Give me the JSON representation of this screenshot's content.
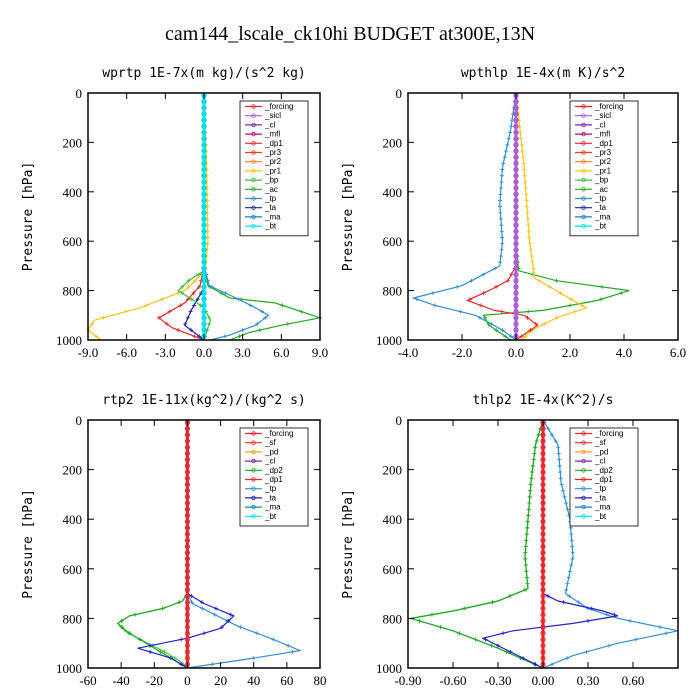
{
  "title": "cam144_lscale_ck10hi  BUDGET at300E,13N",
  "chart_data": [
    {
      "type": "line",
      "title": "wprtp  1E-7x(m kg)/(s^2 kg)",
      "ylabel": "Pressure [hPa]",
      "xlim": [
        -9,
        9
      ],
      "ylim": [
        1000,
        0
      ],
      "xticks": [
        "-9.0",
        "-6.0",
        "-3.0",
        "0.0",
        "3.0",
        "6.0",
        "9.0"
      ],
      "xtick_values": [
        -9,
        -6,
        -3,
        0,
        3,
        6,
        9
      ],
      "yticks": [
        "0",
        "200",
        "400",
        "600",
        "800",
        "1000"
      ],
      "ytick_values": [
        0,
        200,
        400,
        600,
        800,
        1000
      ],
      "legend": [
        "_forcing",
        "_sicl",
        "_cl",
        "_mfl",
        "_dp1",
        "_pr3",
        "_pr2",
        "_pr1",
        "_bp",
        "_ac",
        "_tp",
        "_ta",
        "_ma",
        "_bt"
      ],
      "series": [
        {
          "name": "_pr1",
          "color": "#f5c518",
          "points": [
            [
              0,
              0
            ],
            [
              0.2,
              300
            ],
            [
              0.3,
              600
            ],
            [
              0.1,
              720
            ],
            [
              -1.5,
              800
            ],
            [
              -5,
              870
            ],
            [
              -8.5,
              920
            ],
            [
              -9,
              960
            ],
            [
              -8,
              1000
            ]
          ]
        },
        {
          "name": "_dp1",
          "color": "#e8262d",
          "points": [
            [
              0,
              0
            ],
            [
              0,
              700
            ],
            [
              -0.3,
              780
            ],
            [
              -1.5,
              850
            ],
            [
              -3.5,
              910
            ],
            [
              -2.5,
              950
            ],
            [
              -1,
              980
            ],
            [
              0,
              1000
            ]
          ]
        },
        {
          "name": "_ac",
          "color": "#22aa22",
          "points": [
            [
              0,
              0
            ],
            [
              0,
              700
            ],
            [
              0.3,
              780
            ],
            [
              2,
              830
            ],
            [
              5.5,
              850
            ],
            [
              9,
              910
            ],
            [
              6,
              940
            ],
            [
              3.5,
              970
            ],
            [
              2,
              1000
            ]
          ]
        },
        {
          "name": "_tp",
          "color": "#3090d0",
          "points": [
            [
              0,
              0
            ],
            [
              0,
              700
            ],
            [
              0.4,
              780
            ],
            [
              2.5,
              830
            ],
            [
              4,
              870
            ],
            [
              5,
              900
            ],
            [
              4,
              940
            ],
            [
              2,
              980
            ],
            [
              0.5,
              1000
            ]
          ]
        },
        {
          "name": "_ta",
          "color": "#2222aa",
          "points": [
            [
              0,
              0
            ],
            [
              0,
              700
            ],
            [
              0,
              790
            ],
            [
              -1,
              880
            ],
            [
              -1.5,
              940
            ],
            [
              -0.5,
              980
            ],
            [
              0,
              1000
            ]
          ]
        },
        {
          "name": "_bp",
          "color": "#44bb44",
          "points": [
            [
              0,
              0
            ],
            [
              0,
              720
            ],
            [
              -1.2,
              760
            ],
            [
              -2,
              800
            ],
            [
              -0.8,
              840
            ],
            [
              0,
              870
            ],
            [
              0.5,
              920
            ],
            [
              0,
              1000
            ]
          ]
        },
        {
          "name": "_forcing",
          "color": "#333333",
          "points": [
            [
              0,
              0
            ],
            [
              0,
              1000
            ]
          ]
        },
        {
          "name": "_bt",
          "color": "#00e5ee",
          "points": [
            [
              0,
              0
            ],
            [
              0,
              1000
            ]
          ]
        }
      ]
    },
    {
      "type": "line",
      "title": "wpthlp  1E-4x(m K)/s^2",
      "ylabel": "Pressure [hPa]",
      "xlim": [
        -4,
        6
      ],
      "ylim": [
        1000,
        0
      ],
      "xticks": [
        "-4.0",
        "-2.0",
        "0.0",
        "2.0",
        "4.0",
        "6.0"
      ],
      "xtick_values": [
        -4,
        -2,
        0,
        2,
        4,
        6
      ],
      "yticks": [
        "0",
        "200",
        "400",
        "600",
        "800",
        "1000"
      ],
      "ytick_values": [
        0,
        200,
        400,
        600,
        800,
        1000
      ],
      "legend": [
        "_forcing",
        "_sicl",
        "_cl",
        "_mfl",
        "_dp1",
        "_pr3",
        "_pr2",
        "_pr1",
        "_bp",
        "_ac",
        "_tp",
        "_ta",
        "_ma",
        "_bt"
      ],
      "series": [
        {
          "name": "_tp",
          "color": "#3090d0",
          "points": [
            [
              0,
              0
            ],
            [
              -0.2,
              150
            ],
            [
              -0.5,
              300
            ],
            [
              -0.6,
              450
            ],
            [
              -0.5,
              600
            ],
            [
              -0.6,
              700
            ],
            [
              -2,
              780
            ],
            [
              -3.8,
              830
            ],
            [
              -3,
              860
            ],
            [
              -1.5,
              900
            ],
            [
              -0.5,
              960
            ],
            [
              0,
              1000
            ]
          ]
        },
        {
          "name": "_ac",
          "color": "#22aa22",
          "points": [
            [
              0,
              0
            ],
            [
              0,
              600
            ],
            [
              0.1,
              720
            ],
            [
              1.5,
              760
            ],
            [
              4.2,
              800
            ],
            [
              3,
              840
            ],
            [
              1,
              880
            ],
            [
              -1.2,
              900
            ],
            [
              -1,
              940
            ],
            [
              -0.2,
              1000
            ]
          ]
        },
        {
          "name": "_pr1",
          "color": "#f5c518",
          "points": [
            [
              0,
              0
            ],
            [
              0.3,
              300
            ],
            [
              0.5,
              600
            ],
            [
              0.7,
              750
            ],
            [
              1.8,
              820
            ],
            [
              2.6,
              870
            ],
            [
              1.5,
              910
            ],
            [
              0.6,
              960
            ],
            [
              0.2,
              1000
            ]
          ]
        },
        {
          "name": "_dp1",
          "color": "#e8262d",
          "points": [
            [
              0,
              0
            ],
            [
              0,
              700
            ],
            [
              -0.3,
              760
            ],
            [
              -1,
              800
            ],
            [
              -1.8,
              840
            ],
            [
              -0.8,
              880
            ],
            [
              0.3,
              900
            ],
            [
              0.8,
              940
            ],
            [
              0,
              1000
            ]
          ]
        },
        {
          "name": "_ta",
          "color": "#2222aa",
          "points": [
            [
              0,
              0
            ],
            [
              0,
              1000
            ]
          ]
        },
        {
          "name": "_forcing",
          "color": "#b060d0",
          "points": [
            [
              0,
              0
            ],
            [
              0,
              1000
            ]
          ]
        }
      ]
    },
    {
      "type": "line",
      "title": "rtp2  1E-11x(kg^2)/(kg^2 s)",
      "ylabel": "Pressure [hPa]",
      "xlim": [
        -60,
        80
      ],
      "ylim": [
        1000,
        0
      ],
      "xticks": [
        "-60",
        "-40",
        "-20",
        "0",
        "20",
        "40",
        "60",
        "80"
      ],
      "xtick_values": [
        -60,
        -40,
        -20,
        0,
        20,
        40,
        60,
        80
      ],
      "yticks": [
        "0",
        "200",
        "400",
        "600",
        "800",
        "1000"
      ],
      "ytick_values": [
        0,
        200,
        400,
        600,
        800,
        1000
      ],
      "legend": [
        "_forcing",
        "_sf",
        "_pd",
        "_cl",
        "_dp2",
        "_dp1",
        "_tp",
        "_ta",
        "_ma",
        "_bt"
      ],
      "series": [
        {
          "name": "_dp1",
          "color": "#44cc44",
          "points": [
            [
              0,
              0
            ],
            [
              0,
              700
            ],
            [
              -3,
              730
            ],
            [
              -15,
              760
            ],
            [
              -35,
              790
            ],
            [
              -42,
              820
            ],
            [
              -38,
              850
            ],
            [
              -30,
              880
            ],
            [
              -15,
              930
            ],
            [
              -5,
              970
            ],
            [
              0,
              1000
            ]
          ]
        },
        {
          "name": "_dp2",
          "color": "#22aa22",
          "points": [
            [
              0,
              0
            ],
            [
              0,
              700
            ],
            [
              -3,
              730
            ],
            [
              -15,
              760
            ],
            [
              -35,
              790
            ],
            [
              -42,
              820
            ],
            [
              -36,
              855
            ],
            [
              -25,
              900
            ],
            [
              -10,
              960
            ],
            [
              0,
              1000
            ]
          ]
        },
        {
          "name": "_tp",
          "color": "#3090d0",
          "points": [
            [
              0,
              0
            ],
            [
              0,
              700
            ],
            [
              3,
              740
            ],
            [
              15,
              780
            ],
            [
              30,
              830
            ],
            [
              50,
              880
            ],
            [
              68,
              930
            ],
            [
              40,
              960
            ],
            [
              10,
              990
            ],
            [
              0,
              1000
            ]
          ]
        },
        {
          "name": "_ta",
          "color": "#2222cc",
          "points": [
            [
              0,
              0
            ],
            [
              0,
              700
            ],
            [
              10,
              740
            ],
            [
              28,
              790
            ],
            [
              20,
              840
            ],
            [
              0,
              880
            ],
            [
              -30,
              920
            ],
            [
              -10,
              960
            ],
            [
              0,
              1000
            ]
          ]
        },
        {
          "name": "_forcing",
          "color": "#e8262d",
          "points": [
            [
              0,
              0
            ],
            [
              0,
              1000
            ]
          ]
        }
      ]
    },
    {
      "type": "line",
      "title": "thlp2  1E-4x(K^2)/s",
      "ylabel": "Pressure [hPa]",
      "xlim": [
        -0.9,
        0.9
      ],
      "ylim": [
        1000,
        0
      ],
      "xticks": [
        "-0.90",
        "-0.60",
        "-0.30",
        "0.00",
        "0.30",
        "0.60"
      ],
      "xtick_values": [
        -0.9,
        -0.6,
        -0.3,
        0,
        0.3,
        0.6
      ],
      "yticks": [
        "0",
        "200",
        "400",
        "600",
        "800",
        "1000"
      ],
      "ytick_values": [
        0,
        200,
        400,
        600,
        800,
        1000
      ],
      "legend": [
        "_forcing",
        "_sf",
        "_pd",
        "_cl",
        "_dp2",
        "_dp1",
        "_tp",
        "_ta",
        "_ma",
        "_bt"
      ],
      "series": [
        {
          "name": "_tp",
          "color": "#3090d0",
          "points": [
            [
              0,
              0
            ],
            [
              0.1,
              100
            ],
            [
              0.12,
              250
            ],
            [
              0.18,
              400
            ],
            [
              0.2,
              550
            ],
            [
              0.15,
              700
            ],
            [
              0.3,
              760
            ],
            [
              0.5,
              800
            ],
            [
              0.9,
              850
            ],
            [
              0.5,
              900
            ],
            [
              0.2,
              950
            ],
            [
              0,
              1000
            ]
          ]
        },
        {
          "name": "_dp1",
          "color": "#44cc44",
          "points": [
            [
              0,
              0
            ],
            [
              -0.05,
              100
            ],
            [
              -0.08,
              250
            ],
            [
              -0.1,
              400
            ],
            [
              -0.12,
              550
            ],
            [
              -0.1,
              680
            ],
            [
              -0.3,
              730
            ],
            [
              -0.6,
              770
            ],
            [
              -0.88,
              800
            ],
            [
              -0.6,
              850
            ],
            [
              -0.3,
              920
            ],
            [
              0,
              1000
            ]
          ]
        },
        {
          "name": "_dp2",
          "color": "#22aa22",
          "points": [
            [
              0,
              0
            ],
            [
              -0.05,
              100
            ],
            [
              -0.08,
              250
            ],
            [
              -0.1,
              400
            ],
            [
              -0.12,
              550
            ],
            [
              -0.1,
              680
            ],
            [
              -0.3,
              730
            ],
            [
              -0.6,
              770
            ],
            [
              -0.88,
              800
            ],
            [
              -0.6,
              850
            ],
            [
              -0.3,
              920
            ],
            [
              0,
              1000
            ]
          ]
        },
        {
          "name": "_ta",
          "color": "#2222cc",
          "points": [
            [
              0,
              0
            ],
            [
              0,
              700
            ],
            [
              0.1,
              730
            ],
            [
              0.4,
              770
            ],
            [
              0.5,
              790
            ],
            [
              0.2,
              820
            ],
            [
              -0.2,
              850
            ],
            [
              -0.4,
              880
            ],
            [
              -0.2,
              940
            ],
            [
              0,
              1000
            ]
          ]
        },
        {
          "name": "_forcing",
          "color": "#e8262d",
          "points": [
            [
              0,
              0
            ],
            [
              0,
              1000
            ]
          ]
        }
      ]
    }
  ]
}
